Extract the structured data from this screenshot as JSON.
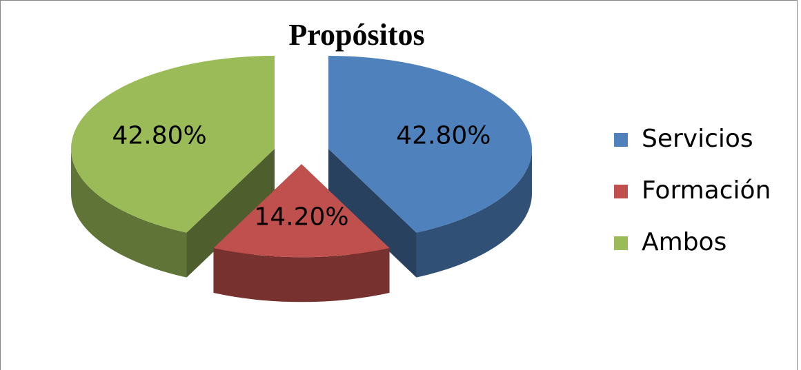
{
  "chart_data": {
    "type": "pie",
    "title": "Propósitos",
    "categories": [
      "Servicios",
      "Formación",
      "Ambos"
    ],
    "values": [
      42.8,
      14.2,
      42.8
    ],
    "value_labels": [
      "42.80%",
      "14.20%",
      "42.80%"
    ],
    "colors": [
      "#4f81bd",
      "#c0504d",
      "#9bbb59"
    ],
    "legend": "right"
  }
}
